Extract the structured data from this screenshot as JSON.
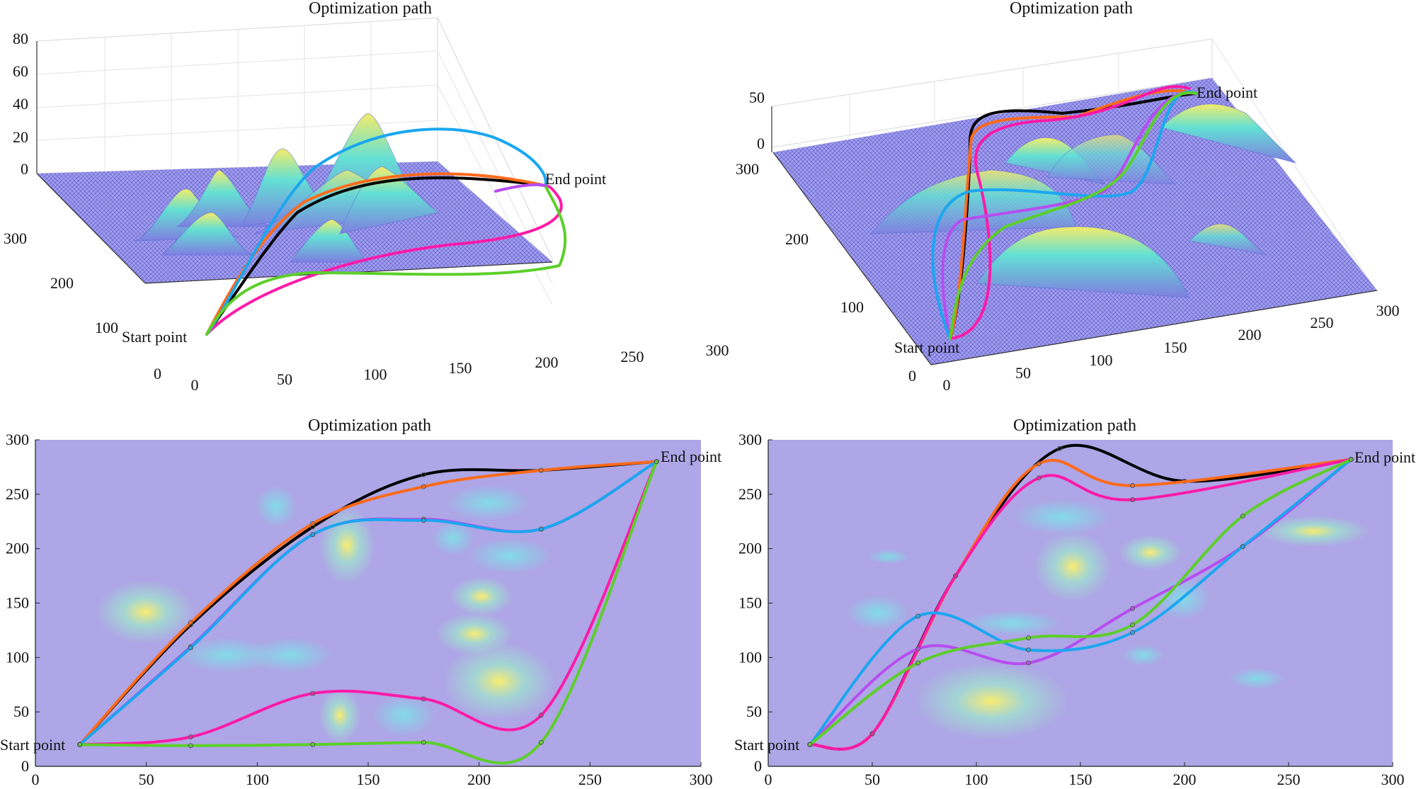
{
  "figure": {
    "panel_titles": [
      "Optimization path",
      "Optimization path",
      "Optimization path",
      "Optimization path"
    ],
    "start_label": "Start point",
    "end_label": "End point",
    "path_colors": [
      "#000000",
      "#ff6a1a",
      "#ff1aa8",
      "#b84cf0",
      "#1aa7f0",
      "#5ccf2a"
    ]
  },
  "chart_data": [
    {
      "type": "surface3d",
      "title": "Optimization path",
      "xlim": [
        0,
        300
      ],
      "ylim": [
        0,
        300
      ],
      "zlim": [
        0,
        80
      ],
      "xticks": [
        "0",
        "50",
        "100",
        "150",
        "200",
        "250",
        "300"
      ],
      "yticks": [
        "0",
        "100",
        "200",
        "300"
      ],
      "zticks": [
        "0",
        "20",
        "40",
        "60",
        "80"
      ],
      "start": [
        20,
        20
      ],
      "end": [
        280,
        280
      ]
    },
    {
      "type": "surface3d",
      "title": "Optimization path",
      "xlim": [
        0,
        300
      ],
      "ylim": [
        0,
        300
      ],
      "zlim": [
        0,
        50
      ],
      "xticks": [
        "0",
        "50",
        "100",
        "150",
        "200",
        "250",
        "300"
      ],
      "yticks": [
        "0",
        "100",
        "200",
        "300"
      ],
      "zticks": [
        "0",
        "50"
      ],
      "start": [
        20,
        20
      ],
      "end": [
        280,
        280
      ]
    },
    {
      "type": "heatmap",
      "title": "Optimization path",
      "xlim": [
        0,
        300
      ],
      "ylim": [
        0,
        300
      ],
      "xticks": [
        "0",
        "50",
        "100",
        "150",
        "200",
        "250",
        "300"
      ],
      "yticks": [
        "0",
        "50",
        "100",
        "150",
        "200",
        "250",
        "300"
      ],
      "start": [
        20,
        20
      ],
      "end": [
        280,
        280
      ],
      "series": [
        {
          "name": "black",
          "color": "#000000",
          "points": [
            [
              20,
              20
            ],
            [
              70,
              130
            ],
            [
              125,
              220
            ],
            [
              175,
              268
            ],
            [
              228,
              272
            ],
            [
              280,
              280
            ]
          ]
        },
        {
          "name": "orange",
          "color": "#ff6a1a",
          "points": [
            [
              20,
              20
            ],
            [
              70,
              132
            ],
            [
              125,
              223
            ],
            [
              175,
              257
            ],
            [
              228,
              272
            ],
            [
              280,
              280
            ]
          ]
        },
        {
          "name": "magenta",
          "color": "#ff1aa8",
          "points": [
            [
              20,
              20
            ],
            [
              70,
              27
            ],
            [
              125,
              67
            ],
            [
              175,
              62
            ],
            [
              228,
              47
            ],
            [
              280,
              280
            ]
          ]
        },
        {
          "name": "purple",
          "color": "#b84cf0",
          "points": [
            [
              20,
              20
            ],
            [
              70,
              110
            ],
            [
              125,
              213
            ],
            [
              175,
              227
            ],
            [
              228,
              218
            ],
            [
              280,
              280
            ]
          ]
        },
        {
          "name": "blue",
          "color": "#1aa7f0",
          "points": [
            [
              20,
              20
            ],
            [
              70,
              109
            ],
            [
              125,
              213
            ],
            [
              175,
              226
            ],
            [
              228,
              218
            ],
            [
              280,
              280
            ]
          ]
        },
        {
          "name": "green",
          "color": "#5ccf2a",
          "points": [
            [
              20,
              20
            ],
            [
              70,
              19
            ],
            [
              125,
              20
            ],
            [
              175,
              22
            ],
            [
              228,
              22
            ],
            [
              280,
              280
            ]
          ]
        }
      ]
    },
    {
      "type": "heatmap",
      "title": "Optimization path",
      "xlim": [
        0,
        300
      ],
      "ylim": [
        0,
        300
      ],
      "xticks": [
        "0",
        "50",
        "100",
        "150",
        "200",
        "250",
        "300"
      ],
      "yticks": [
        "0",
        "50",
        "100",
        "150",
        "200",
        "250",
        "300"
      ],
      "start": [
        20,
        20
      ],
      "end": [
        280,
        280
      ],
      "series": [
        {
          "name": "black",
          "color": "#000000",
          "points": [
            [
              20,
              20
            ],
            [
              50,
              30
            ],
            [
              90,
              175
            ],
            [
              140,
              292
            ],
            [
              200,
              262
            ],
            [
              280,
              282
            ]
          ]
        },
        {
          "name": "orange",
          "color": "#ff6a1a",
          "points": [
            [
              20,
              20
            ],
            [
              50,
              30
            ],
            [
              90,
              175
            ],
            [
              130,
              278
            ],
            [
              175,
              258
            ],
            [
              280,
              282
            ]
          ]
        },
        {
          "name": "magenta",
          "color": "#ff1aa8",
          "points": [
            [
              20,
              20
            ],
            [
              50,
              30
            ],
            [
              90,
              175
            ],
            [
              130,
              265
            ],
            [
              175,
              245
            ],
            [
              280,
              282
            ]
          ]
        },
        {
          "name": "purple",
          "color": "#b84cf0",
          "points": [
            [
              20,
              20
            ],
            [
              72,
              108
            ],
            [
              125,
              95
            ],
            [
              175,
              145
            ],
            [
              228,
              202
            ],
            [
              280,
              282
            ]
          ]
        },
        {
          "name": "blue",
          "color": "#1aa7f0",
          "points": [
            [
              20,
              20
            ],
            [
              72,
              138
            ],
            [
              125,
              107
            ],
            [
              175,
              123
            ],
            [
              228,
              202
            ],
            [
              280,
              282
            ]
          ]
        },
        {
          "name": "green",
          "color": "#5ccf2a",
          "points": [
            [
              20,
              20
            ],
            [
              72,
              95
            ],
            [
              125,
              118
            ],
            [
              175,
              130
            ],
            [
              228,
              230
            ],
            [
              280,
              282
            ]
          ]
        }
      ]
    }
  ]
}
